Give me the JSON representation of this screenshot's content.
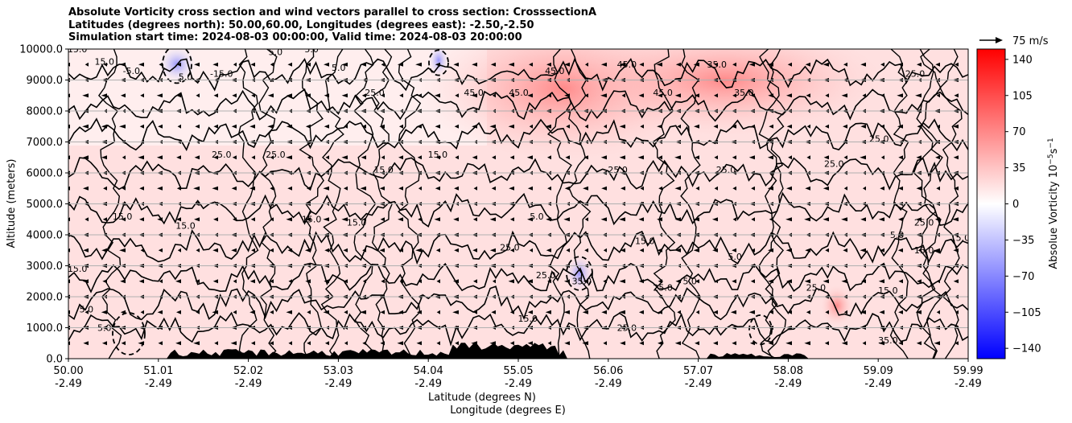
{
  "title": {
    "line1": "Absolute Vorticity cross section and wind vectors parallel to cross section: CrosssectionA",
    "line2": "Latitudes (degrees north): 50.00,60.00, Longitudes (degrees east): -2.50,-2.50",
    "line3": "Simulation start time: 2024-08-03 00:00:00, Valid time: 2024-08-03 20:00:00"
  },
  "chart_data": {
    "type": "heatmap",
    "ylabel": "Altitude (meters)",
    "xlabel_lat": "Latitude (degrees N)",
    "xlabel_lon": "Longitude (degrees E)",
    "ylim": [
      0,
      10000
    ],
    "y_ticks": [
      "0.0",
      "1000.0",
      "2000.0",
      "3000.0",
      "4000.0",
      "5000.0",
      "6000.0",
      "7000.0",
      "8000.0",
      "9000.0",
      "10000.0"
    ],
    "x_ticks": [
      {
        "lat": "50.00",
        "lon": "-2.49"
      },
      {
        "lat": "51.01",
        "lon": "-2.49"
      },
      {
        "lat": "52.02",
        "lon": "-2.49"
      },
      {
        "lat": "53.03",
        "lon": "-2.49"
      },
      {
        "lat": "54.04",
        "lon": "-2.49"
      },
      {
        "lat": "55.05",
        "lon": "-2.49"
      },
      {
        "lat": "56.06",
        "lon": "-2.49"
      },
      {
        "lat": "57.07",
        "lon": "-2.49"
      },
      {
        "lat": "58.08",
        "lon": "-2.49"
      },
      {
        "lat": "59.09",
        "lon": "-2.49"
      },
      {
        "lat": "59.99",
        "lon": "-2.49"
      }
    ],
    "grid": true,
    "colorbar": {
      "label": "Absolue Vorticity 10",
      "label_exp": "−5",
      "label_unit": "s",
      "label_unit_exp": "−1",
      "range": [
        -150,
        150
      ],
      "ticks": [
        "140",
        "105",
        "70",
        "35",
        "0",
        "−35",
        "−70",
        "−105",
        "−140"
      ],
      "tick_values": [
        140,
        105,
        70,
        35,
        0,
        -35,
        -70,
        -105,
        -140
      ],
      "colormap": "bwr",
      "low_color": "#0000ff",
      "mid_color": "#ffffff",
      "high_color": "#ff0000"
    },
    "quiver_key": "75 m/s",
    "contour_labels": [
      {
        "text": "15.0",
        "lat": 50.1,
        "alt": 9900
      },
      {
        "text": "15.0",
        "lat": 50.4,
        "alt": 9500
      },
      {
        "text": "-5.0",
        "lat": 50.7,
        "alt": 9200
      },
      {
        "text": "5.0",
        "lat": 51.3,
        "alt": 9000
      },
      {
        "text": "-15.0",
        "lat": 51.7,
        "alt": 9100
      },
      {
        "text": "5.0",
        "lat": 52.3,
        "alt": 9800
      },
      {
        "text": "5.0",
        "lat": 52.7,
        "alt": 9900
      },
      {
        "text": "5.0",
        "lat": 53.0,
        "alt": 9300
      },
      {
        "text": "25.0",
        "lat": 53.4,
        "alt": 8500
      },
      {
        "text": "45.0",
        "lat": 55.0,
        "alt": 8500
      },
      {
        "text": "45.0",
        "lat": 54.5,
        "alt": 8500
      },
      {
        "text": "45.0",
        "lat": 55.4,
        "alt": 9200
      },
      {
        "text": "45.0",
        "lat": 56.2,
        "alt": 9400
      },
      {
        "text": "45.0",
        "lat": 56.6,
        "alt": 8500
      },
      {
        "text": "35.0",
        "lat": 57.2,
        "alt": 9400
      },
      {
        "text": "35.0",
        "lat": 57.5,
        "alt": 8500
      },
      {
        "text": "25.0",
        "lat": 59.4,
        "alt": 9100
      },
      {
        "text": "25.0",
        "lat": 58.4,
        "alt": 10000
      },
      {
        "text": "25.0",
        "lat": 51.7,
        "alt": 6500
      },
      {
        "text": "25.0",
        "lat": 52.3,
        "alt": 6500
      },
      {
        "text": "15.0",
        "lat": 53.5,
        "alt": 6000
      },
      {
        "text": "15.0",
        "lat": 54.1,
        "alt": 6500
      },
      {
        "text": "25.0",
        "lat": 56.1,
        "alt": 6000
      },
      {
        "text": "25.0",
        "lat": 57.3,
        "alt": 6000
      },
      {
        "text": "25.0",
        "lat": 58.5,
        "alt": 6200
      },
      {
        "text": "25.0",
        "lat": 59.0,
        "alt": 7000
      },
      {
        "text": "15.0",
        "lat": 50.6,
        "alt": 4500
      },
      {
        "text": "15.0",
        "lat": 51.3,
        "alt": 4200
      },
      {
        "text": "15.0",
        "lat": 52.7,
        "alt": 4400
      },
      {
        "text": "15.0",
        "lat": 53.2,
        "alt": 4300
      },
      {
        "text": "5.0",
        "lat": 55.2,
        "alt": 4500
      },
      {
        "text": "25.0",
        "lat": 54.9,
        "alt": 3500
      },
      {
        "text": "15.0",
        "lat": 56.4,
        "alt": 3700
      },
      {
        "text": "5.0",
        "lat": 57.4,
        "alt": 3200
      },
      {
        "text": "5.0",
        "lat": 59.2,
        "alt": 3900
      },
      {
        "text": "15.0",
        "lat": 59.5,
        "alt": 3400
      },
      {
        "text": "25.0",
        "lat": 59.5,
        "alt": 4300
      },
      {
        "text": "15.0",
        "lat": 59.9,
        "alt": 3800
      },
      {
        "text": "15.0",
        "lat": 50.1,
        "alt": 2800
      },
      {
        "text": "5.0",
        "lat": 50.2,
        "alt": 1500
      },
      {
        "text": "5.0",
        "lat": 50.4,
        "alt": 900
      },
      {
        "text": "25.0",
        "lat": 55.3,
        "alt": 2600
      },
      {
        "text": "35.0",
        "lat": 55.7,
        "alt": 2400
      },
      {
        "text": "25.0",
        "lat": 56.6,
        "alt": 2200
      },
      {
        "text": "5.0",
        "lat": 56.9,
        "alt": 2400
      },
      {
        "text": "25.0",
        "lat": 58.3,
        "alt": 2200
      },
      {
        "text": "15.0",
        "lat": 59.1,
        "alt": 2100
      },
      {
        "text": "35.0",
        "lat": 59.1,
        "alt": 500
      },
      {
        "text": "25.0",
        "lat": 56.2,
        "alt": 900
      },
      {
        "text": "15.0",
        "lat": 55.1,
        "alt": 1200
      }
    ]
  }
}
